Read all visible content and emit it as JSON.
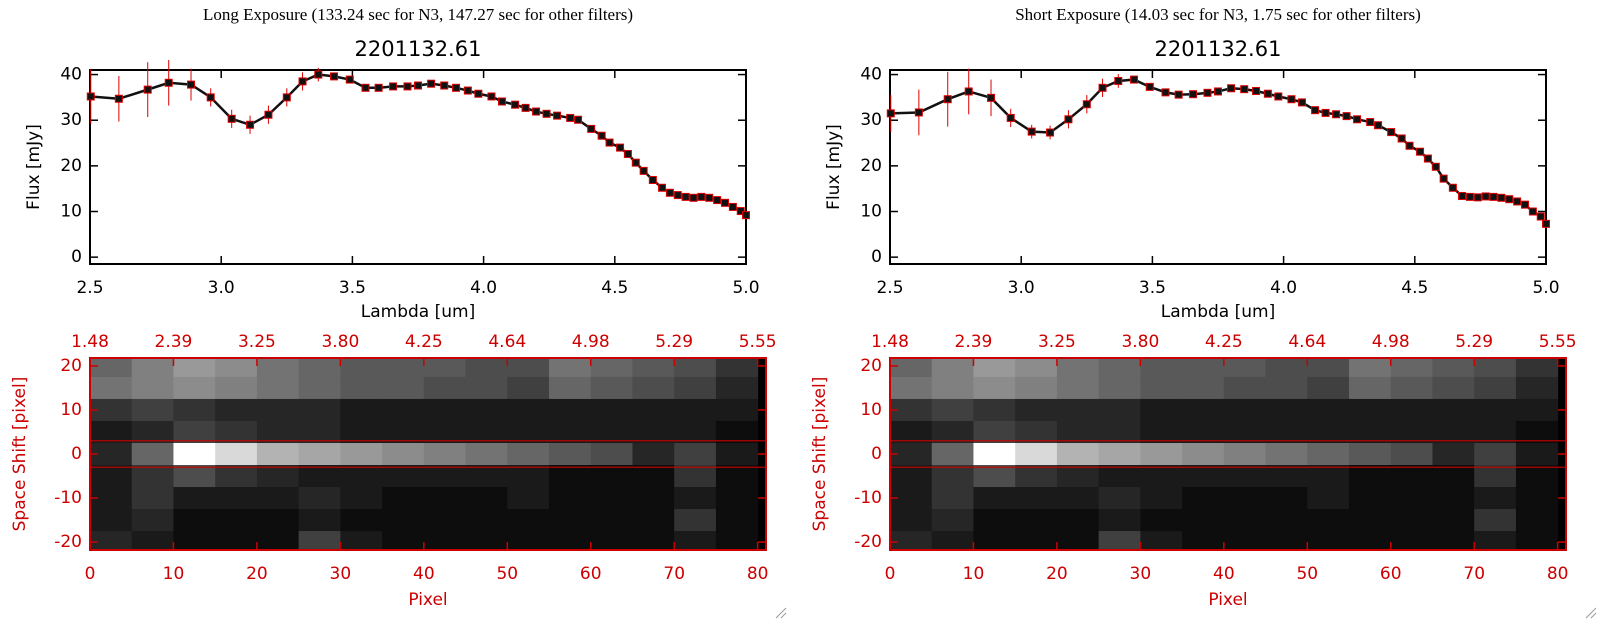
{
  "chart_data": [
    {
      "type": "line",
      "header": "Long Exposure (133.24 sec for N3, 147.27 sec for other filters)",
      "title": "2201132.61",
      "xlabel": "Lambda [um]",
      "ylabel": "Flux [mJy]",
      "xlim": [
        2.5,
        5.0
      ],
      "ylim": [
        -1.5,
        41
      ],
      "xticks": [
        2.5,
        {
          "value": 3.0,
          "label": "3.0"
        },
        3.5,
        {
          "value": 4.0,
          "label": "4.0"
        },
        4.5,
        {
          "value": 5.0,
          "label": "5.0"
        }
      ],
      "yticks": [
        0,
        10,
        20,
        30,
        40
      ],
      "color": "#111111",
      "error_color": "#dd0000",
      "x": [
        2.503,
        2.61,
        2.72,
        2.8,
        2.885,
        2.96,
        3.04,
        3.11,
        3.18,
        3.25,
        3.31,
        3.37,
        3.43,
        3.49,
        3.55,
        3.6,
        3.655,
        3.71,
        3.75,
        3.8,
        3.85,
        3.895,
        3.94,
        3.98,
        4.03,
        4.07,
        4.12,
        4.16,
        4.2,
        4.24,
        4.28,
        4.33,
        4.36,
        4.41,
        4.45,
        4.48,
        4.52,
        4.55,
        4.58,
        4.61,
        4.645,
        4.68,
        4.71,
        4.74,
        4.77,
        4.8,
        4.83,
        4.86,
        4.89,
        4.92,
        4.95,
        4.98,
        5.0
      ],
      "values": [
        35.2,
        34.7,
        36.7,
        38.2,
        37.8,
        35,
        30.3,
        29,
        31.2,
        35,
        38.5,
        40,
        39.6,
        38.9,
        37.1,
        37.1,
        37.4,
        37.4,
        37.6,
        38,
        37.6,
        37.1,
        36.5,
        35.8,
        35.2,
        34.1,
        33.4,
        32.7,
        31.9,
        31.4,
        31,
        30.5,
        30.1,
        28.1,
        26.6,
        25.1,
        24,
        22.6,
        20.7,
        18.9,
        16.9,
        15.2,
        14.1,
        13.6,
        13.2,
        13,
        13.2,
        13,
        12.5,
        11.9,
        11,
        10.1,
        9.2
      ],
      "errors": [
        6,
        5,
        6,
        5,
        3.5,
        2,
        2,
        2,
        2,
        2,
        2,
        1.5,
        0.8,
        0.8,
        0.8,
        0.8,
        0.8,
        0.8,
        0.8,
        0.8,
        0.8,
        0.8,
        0.8,
        0.8,
        0.8,
        0.8,
        0.8,
        0.8,
        0.8,
        0.8,
        0.8,
        0.8,
        0.8,
        0.8,
        0.8,
        0.8,
        0.8,
        0.8,
        0.8,
        0.8,
        0.8,
        0.8,
        0.8,
        0.8,
        0.8,
        0.8,
        0.8,
        0.8,
        0.8,
        0.8,
        0.8,
        0.8,
        0.8
      ]
    },
    {
      "type": "heatmap",
      "xlabel": "Pixel",
      "ylabel": "Space Shift [pixel]",
      "xlim": [
        0,
        81
      ],
      "ylim": [
        -21.8,
        21.8
      ],
      "xticks": [
        0,
        10,
        20,
        30,
        40,
        50,
        60,
        70,
        80
      ],
      "yticks": [
        -20,
        -10,
        0,
        10,
        20
      ],
      "x2ticks": [
        1.48,
        2.39,
        3.25,
        {
          "value": 3.8,
          "label": "3.80"
        },
        4.25,
        4.64,
        4.98,
        5.29,
        5.55
      ],
      "axis_color": "#cc0000",
      "lines_y": [
        3,
        -3
      ],
      "x_bins": [
        0,
        5,
        10,
        15,
        20,
        25,
        30,
        35,
        40,
        45,
        50,
        55,
        60,
        65,
        70,
        75,
        80
      ],
      "y_bins": [
        21.8,
        17.5,
        12.5,
        7.5,
        2.5,
        -2.5,
        -7.5,
        -12.5,
        -17.5,
        -21.8
      ],
      "z": [
        [
          40,
          50,
          60,
          55,
          45,
          40,
          35,
          35,
          35,
          30,
          30,
          45,
          40,
          35,
          30,
          20
        ],
        [
          45,
          50,
          55,
          50,
          45,
          40,
          35,
          35,
          30,
          30,
          25,
          40,
          35,
          30,
          25,
          15
        ],
        [
          20,
          25,
          20,
          15,
          15,
          15,
          10,
          10,
          10,
          10,
          10,
          10,
          10,
          10,
          10,
          10
        ],
        [
          10,
          15,
          25,
          20,
          15,
          15,
          10,
          10,
          10,
          10,
          10,
          10,
          10,
          10,
          10,
          5
        ],
        [
          15,
          40,
          100,
          85,
          70,
          65,
          60,
          55,
          50,
          45,
          40,
          35,
          30,
          15,
          25,
          10
        ],
        [
          10,
          20,
          30,
          20,
          15,
          10,
          10,
          10,
          10,
          10,
          10,
          5,
          5,
          5,
          20,
          5
        ],
        [
          10,
          20,
          10,
          10,
          10,
          15,
          10,
          5,
          5,
          5,
          10,
          5,
          5,
          5,
          10,
          5
        ],
        [
          10,
          15,
          5,
          5,
          5,
          10,
          5,
          5,
          5,
          5,
          5,
          5,
          5,
          5,
          20,
          5
        ],
        [
          15,
          10,
          5,
          5,
          5,
          25,
          10,
          5,
          5,
          5,
          5,
          5,
          5,
          5,
          10,
          5
        ]
      ]
    },
    {
      "type": "line",
      "header": "Short Exposure (14.03 sec for N3, 1.75 sec for other filters)",
      "title": "2201132.61",
      "xlabel": "Lambda [um]",
      "ylabel": "Flux [mJy]",
      "xlim": [
        2.5,
        5.0
      ],
      "ylim": [
        -1.5,
        41
      ],
      "xticks": [
        2.5,
        {
          "value": 3.0,
          "label": "3.0"
        },
        3.5,
        {
          "value": 4.0,
          "label": "4.0"
        },
        4.5,
        {
          "value": 5.0,
          "label": "5.0"
        }
      ],
      "yticks": [
        0,
        10,
        20,
        30,
        40
      ],
      "color": "#111111",
      "error_color": "#dd0000",
      "x": [
        2.503,
        2.61,
        2.72,
        2.8,
        2.885,
        2.96,
        3.04,
        3.11,
        3.18,
        3.25,
        3.31,
        3.37,
        3.43,
        3.49,
        3.55,
        3.6,
        3.655,
        3.71,
        3.75,
        3.8,
        3.85,
        3.895,
        3.94,
        3.98,
        4.03,
        4.07,
        4.12,
        4.16,
        4.2,
        4.24,
        4.28,
        4.33,
        4.36,
        4.41,
        4.45,
        4.48,
        4.52,
        4.55,
        4.58,
        4.61,
        4.645,
        4.68,
        4.71,
        4.74,
        4.77,
        4.8,
        4.83,
        4.86,
        4.89,
        4.92,
        4.95,
        4.98,
        5.0
      ],
      "values": [
        31.5,
        31.7,
        34.6,
        36.3,
        34.9,
        30.5,
        27.5,
        27.3,
        30.2,
        33.5,
        37.1,
        38.6,
        38.9,
        37.3,
        36.1,
        35.6,
        35.7,
        36.0,
        36.3,
        37.0,
        36.8,
        36.4,
        35.8,
        35.2,
        34.6,
        33.9,
        32.2,
        31.6,
        31.3,
        30.9,
        30.2,
        29.6,
        28.9,
        27.4,
        26,
        24.4,
        23.1,
        21.6,
        19.8,
        17.2,
        15.2,
        13.4,
        13.2,
        13.1,
        13.3,
        13.2,
        13,
        12.7,
        12.2,
        11.5,
        10,
        8.9,
        7.3
      ],
      "errors": [
        4,
        5,
        6,
        5,
        4,
        2,
        1.5,
        1.5,
        2,
        2,
        2,
        1.5,
        0.8,
        0.8,
        0.8,
        0.8,
        0.8,
        0.8,
        0.8,
        0.8,
        0.8,
        0.8,
        0.8,
        0.8,
        0.8,
        0.8,
        0.8,
        0.8,
        0.8,
        0.8,
        0.8,
        0.8,
        0.8,
        0.8,
        0.8,
        0.8,
        0.8,
        0.8,
        0.8,
        0.8,
        0.8,
        0.8,
        0.8,
        0.8,
        0.8,
        0.8,
        0.8,
        0.8,
        0.8,
        0.8,
        0.8,
        0.8,
        0.8
      ]
    },
    {
      "type": "heatmap",
      "xlabel": "Pixel",
      "ylabel": "Space Shift [pixel]",
      "xlim": [
        0,
        81
      ],
      "ylim": [
        -21.8,
        21.8
      ],
      "xticks": [
        0,
        10,
        20,
        30,
        40,
        50,
        60,
        70,
        80
      ],
      "yticks": [
        -20,
        -10,
        0,
        10,
        20
      ],
      "x2ticks": [
        1.48,
        2.39,
        3.25,
        {
          "value": 3.8,
          "label": "3.80"
        },
        4.25,
        4.64,
        4.98,
        5.29,
        5.55
      ],
      "axis_color": "#cc0000",
      "lines_y": [
        3,
        -3
      ],
      "x_bins": [
        0,
        5,
        10,
        15,
        20,
        25,
        30,
        35,
        40,
        45,
        50,
        55,
        60,
        65,
        70,
        75,
        80
      ],
      "y_bins": [
        21.8,
        17.5,
        12.5,
        7.5,
        2.5,
        -2.5,
        -7.5,
        -12.5,
        -17.5,
        -21.8
      ],
      "z": [
        [
          40,
          50,
          60,
          55,
          45,
          40,
          35,
          35,
          35,
          30,
          30,
          45,
          40,
          35,
          30,
          20
        ],
        [
          45,
          50,
          55,
          50,
          45,
          40,
          35,
          35,
          30,
          30,
          25,
          40,
          35,
          30,
          25,
          15
        ],
        [
          20,
          25,
          20,
          15,
          15,
          15,
          10,
          10,
          10,
          10,
          10,
          10,
          10,
          10,
          10,
          10
        ],
        [
          10,
          15,
          25,
          20,
          15,
          15,
          10,
          10,
          10,
          10,
          10,
          10,
          10,
          10,
          10,
          5
        ],
        [
          15,
          40,
          100,
          85,
          70,
          65,
          60,
          55,
          50,
          45,
          40,
          35,
          30,
          15,
          25,
          10
        ],
        [
          10,
          20,
          30,
          20,
          15,
          10,
          10,
          10,
          10,
          10,
          10,
          5,
          5,
          5,
          20,
          5
        ],
        [
          10,
          20,
          10,
          10,
          10,
          15,
          10,
          5,
          5,
          5,
          10,
          5,
          5,
          5,
          10,
          5
        ],
        [
          10,
          15,
          5,
          5,
          5,
          10,
          5,
          5,
          5,
          5,
          5,
          5,
          5,
          5,
          20,
          5
        ],
        [
          15,
          10,
          5,
          5,
          5,
          25,
          10,
          5,
          5,
          5,
          5,
          5,
          5,
          5,
          10,
          5
        ]
      ]
    }
  ]
}
